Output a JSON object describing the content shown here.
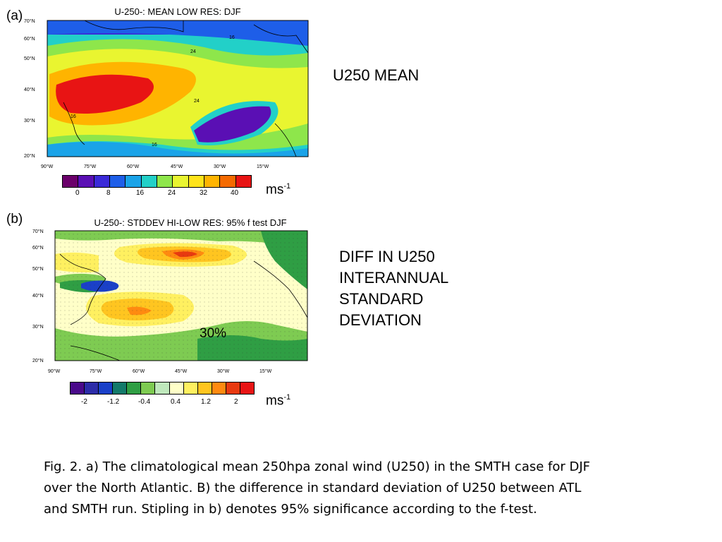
{
  "panel_a": {
    "letter": "(a)",
    "title": "U-250-: MEAN LOW RES: DJF",
    "lat_ticks": [
      "70°N",
      "60°N",
      "50°N",
      "40°N",
      "30°N",
      "20°N"
    ],
    "lon_ticks": [
      "90°W",
      "75°W",
      "60°W",
      "45°W",
      "30°W",
      "15°W"
    ],
    "contour_labels": [
      "16",
      "24",
      "24",
      "16",
      "16"
    ],
    "colorbar_ticks": [
      "0",
      "8",
      "16",
      "24",
      "32",
      "40"
    ],
    "colorbar_colors": [
      "#6b006b",
      "#5a0fb4",
      "#3a2ad8",
      "#1e5ee8",
      "#1aa3e8",
      "#22d0c8",
      "#8ee64b",
      "#e9f530",
      "#ffe31a",
      "#ffb400",
      "#f56a00",
      "#e81414"
    ],
    "unit_base": "ms",
    "unit_exp": "-1",
    "side_label": "U250 MEAN"
  },
  "panel_b": {
    "letter": "(b)",
    "title": "U-250-: STDDEV HI-LOW RES: 95% f test DJF",
    "lat_ticks": [
      "70°N",
      "60°N",
      "50°N",
      "40°N",
      "30°N",
      "20°N"
    ],
    "lon_ticks": [
      "90°W",
      "75°W",
      "60°W",
      "45°W",
      "30°W",
      "15°W"
    ],
    "colorbar_ticks": [
      "-2",
      "-1.2",
      "-0.4",
      "0.4",
      "1.2",
      "2"
    ],
    "colorbar_colors": [
      "#4a0a8a",
      "#2c2ca8",
      "#1a40c8",
      "#137a6a",
      "#2f9e44",
      "#7ecb52",
      "#bfe8bc",
      "#ffffc8",
      "#fff060",
      "#ffc520",
      "#ff8a10",
      "#e83a10",
      "#e81414"
    ],
    "annotation": "30%",
    "unit_base": "ms",
    "unit_exp": "-1",
    "side_label_lines": [
      "DIFF IN U250",
      "INTERANNUAL",
      "STANDARD",
      "DEVIATION"
    ]
  },
  "caption_lines": [
    "Fig. 2. a) The climatological mean 250hpa zonal wind (U250) in the SMTH case for DJF",
    "over the North Atlantic. B)  the difference in standard deviation of U250 between ATL",
    "and SMTH run. Stipling in b) denotes 95% significance according to the f-test."
  ]
}
